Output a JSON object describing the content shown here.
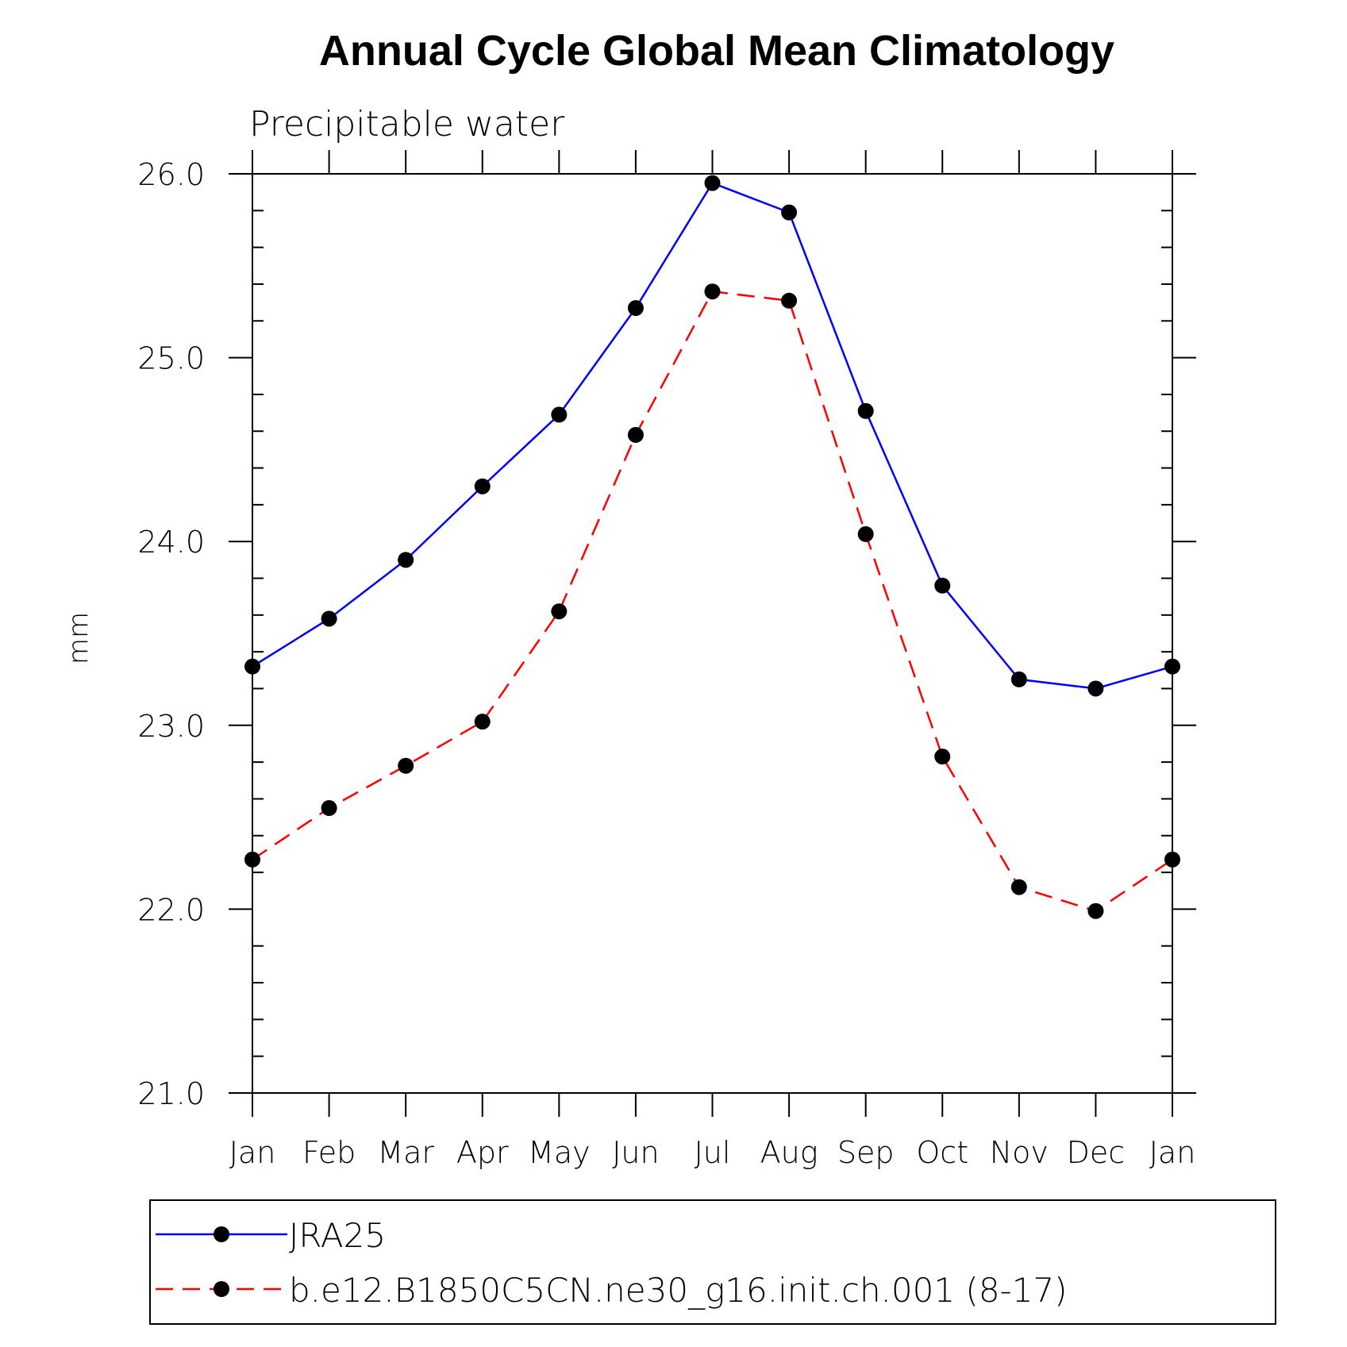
{
  "chart_data": {
    "type": "line",
    "title": "Annual Cycle Global Mean Climatology",
    "subtitle": "Precipitable water",
    "xlabel": "",
    "ylabel": "mm",
    "categories": [
      "Jan",
      "Feb",
      "Mar",
      "Apr",
      "May",
      "Jun",
      "Jul",
      "Aug",
      "Sep",
      "Oct",
      "Nov",
      "Dec",
      "Jan"
    ],
    "ylim": [
      21.0,
      26.0
    ],
    "yticks": [
      "21.0",
      "22.0",
      "23.0",
      "24.0",
      "25.0",
      "26.0"
    ],
    "grid": false,
    "legend_position": "bottom",
    "series": [
      {
        "name": "JRA25",
        "color": "#0000ff",
        "dash": "solid",
        "marker": "dot",
        "values": [
          23.32,
          23.58,
          23.9,
          24.3,
          24.69,
          25.27,
          25.95,
          25.79,
          24.71,
          23.76,
          23.25,
          23.2,
          23.32
        ]
      },
      {
        "name": "b.e12.B1850C5CN.ne30_g16.init.ch.001 (8-17)",
        "color": "#ff0000",
        "dash": "dashed",
        "marker": "dot",
        "values": [
          22.27,
          22.55,
          22.78,
          23.02,
          23.62,
          24.58,
          25.36,
          25.31,
          24.04,
          22.83,
          22.12,
          21.99,
          22.27
        ]
      }
    ]
  }
}
